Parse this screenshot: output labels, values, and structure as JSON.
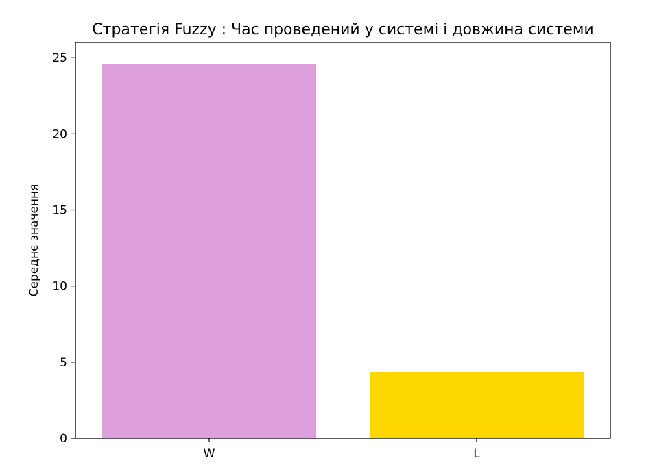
{
  "chart_data": {
    "type": "bar",
    "title": "Стратегія Fuzzy : Час проведений у системі і довжина системи",
    "xlabel": "",
    "ylabel": "Середнє значення",
    "categories": [
      "W",
      "L"
    ],
    "values": [
      24.6,
      4.35
    ],
    "colors": [
      "#DDA0DD",
      "#FFD700"
    ],
    "ylim": [
      0,
      26
    ],
    "yticks": [
      0,
      5,
      10,
      15,
      20,
      25
    ],
    "grid": false,
    "legend": "none"
  }
}
